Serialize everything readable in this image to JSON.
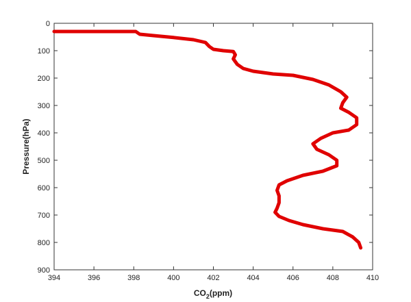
{
  "chart_data": {
    "type": "line",
    "xlabel": "CO",
    "xlabel_sub": "2",
    "xlabel_unit": "(ppm)",
    "ylabel": "Pressure(hPa)",
    "xlim": [
      394,
      410
    ],
    "ylim": [
      0,
      900
    ],
    "y_reversed": true,
    "grid": false,
    "line_color": "#e00000",
    "xticks": [
      "394",
      "396",
      "398",
      "400",
      "402",
      "404",
      "406",
      "408",
      "410"
    ],
    "yticks": [
      "0",
      "100",
      "200",
      "300",
      "400",
      "500",
      "600",
      "700",
      "800",
      "900"
    ],
    "series": [
      {
        "x": [
          394.0,
          396.0,
          398.1,
          398.3,
          399.0,
          400.0,
          401.0,
          401.6,
          401.8,
          402.0,
          402.5,
          403.0,
          403.1,
          403.0,
          403.2,
          403.5,
          404.0,
          405.0,
          406.0,
          407.0,
          407.8,
          408.4,
          408.7,
          408.5,
          408.4,
          408.8,
          409.2,
          409.2,
          408.8,
          408.0,
          407.4,
          407.0,
          407.2,
          407.8,
          408.2,
          408.2,
          407.5,
          406.5,
          405.7,
          405.3,
          405.2,
          405.3,
          405.3,
          405.2,
          405.1,
          405.3,
          405.8,
          406.5,
          407.5,
          408.5,
          409.0,
          409.3,
          409.4
        ],
        "y": [
          30,
          30,
          30,
          40,
          45,
          52,
          60,
          70,
          85,
          95,
          100,
          103,
          115,
          130,
          150,
          165,
          175,
          185,
          190,
          205,
          225,
          250,
          270,
          290,
          310,
          325,
          345,
          370,
          390,
          400,
          420,
          440,
          460,
          480,
          500,
          520,
          540,
          555,
          575,
          590,
          610,
          630,
          655,
          675,
          690,
          705,
          720,
          735,
          750,
          760,
          780,
          800,
          820
        ]
      }
    ]
  }
}
